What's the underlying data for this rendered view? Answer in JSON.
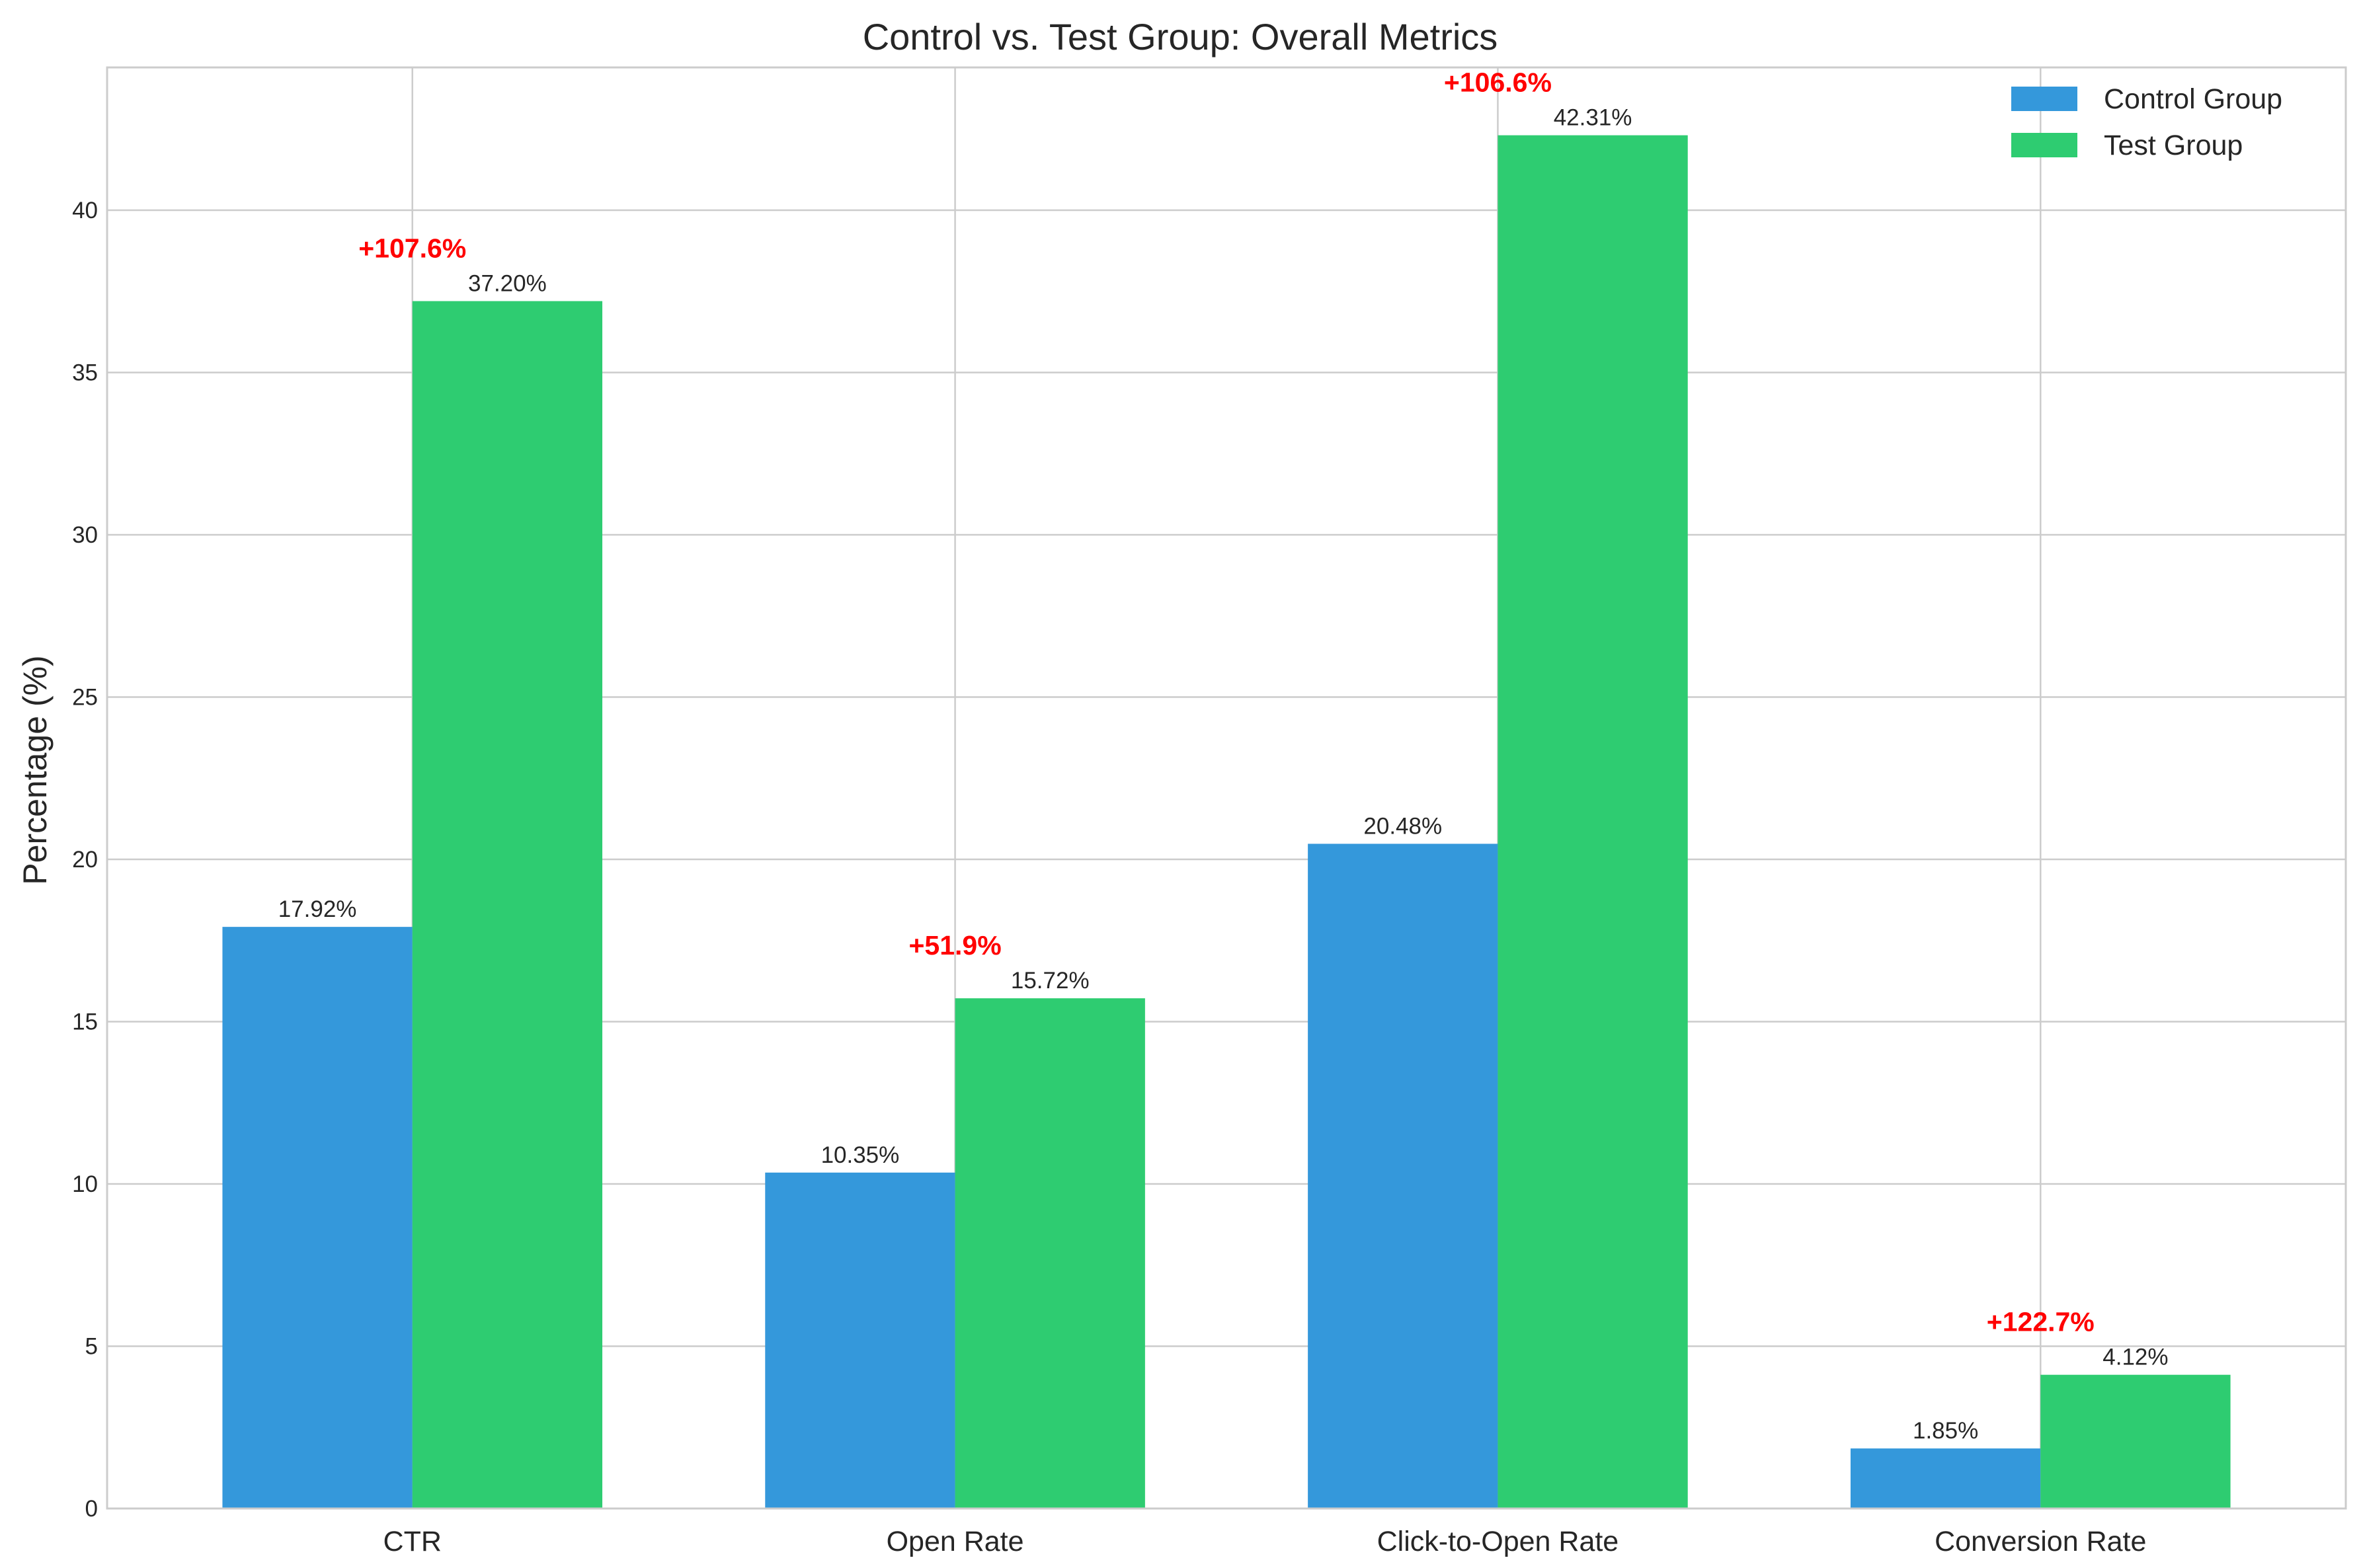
{
  "chart_data": {
    "type": "bar",
    "title": "Control vs. Test Group: Overall Metrics",
    "xlabel": "",
    "ylabel": "Percentage (%)",
    "categories": [
      "CTR",
      "Open Rate",
      "Click-to-Open Rate",
      "Conversion Rate"
    ],
    "series": [
      {
        "name": "Control Group",
        "color": "#3498db",
        "values": [
          17.92,
          10.35,
          20.48,
          1.85
        ],
        "labels": [
          "17.92%",
          "10.35%",
          "20.48%",
          "1.85%"
        ]
      },
      {
        "name": "Test Group",
        "color": "#2ecc71",
        "values": [
          37.2,
          15.72,
          42.31,
          4.12
        ],
        "labels": [
          "37.20%",
          "15.72%",
          "42.31%",
          "4.12%"
        ]
      }
    ],
    "annotations": [
      "+107.6%",
      "+51.9%",
      "+106.6%",
      "+122.7%"
    ],
    "annotation_color": "#ff0000",
    "ylim": [
      0,
      44.4
    ],
    "yticks": [
      0,
      5,
      10,
      15,
      20,
      25,
      30,
      35,
      40
    ],
    "grid": true,
    "legend_position": "top-right"
  }
}
